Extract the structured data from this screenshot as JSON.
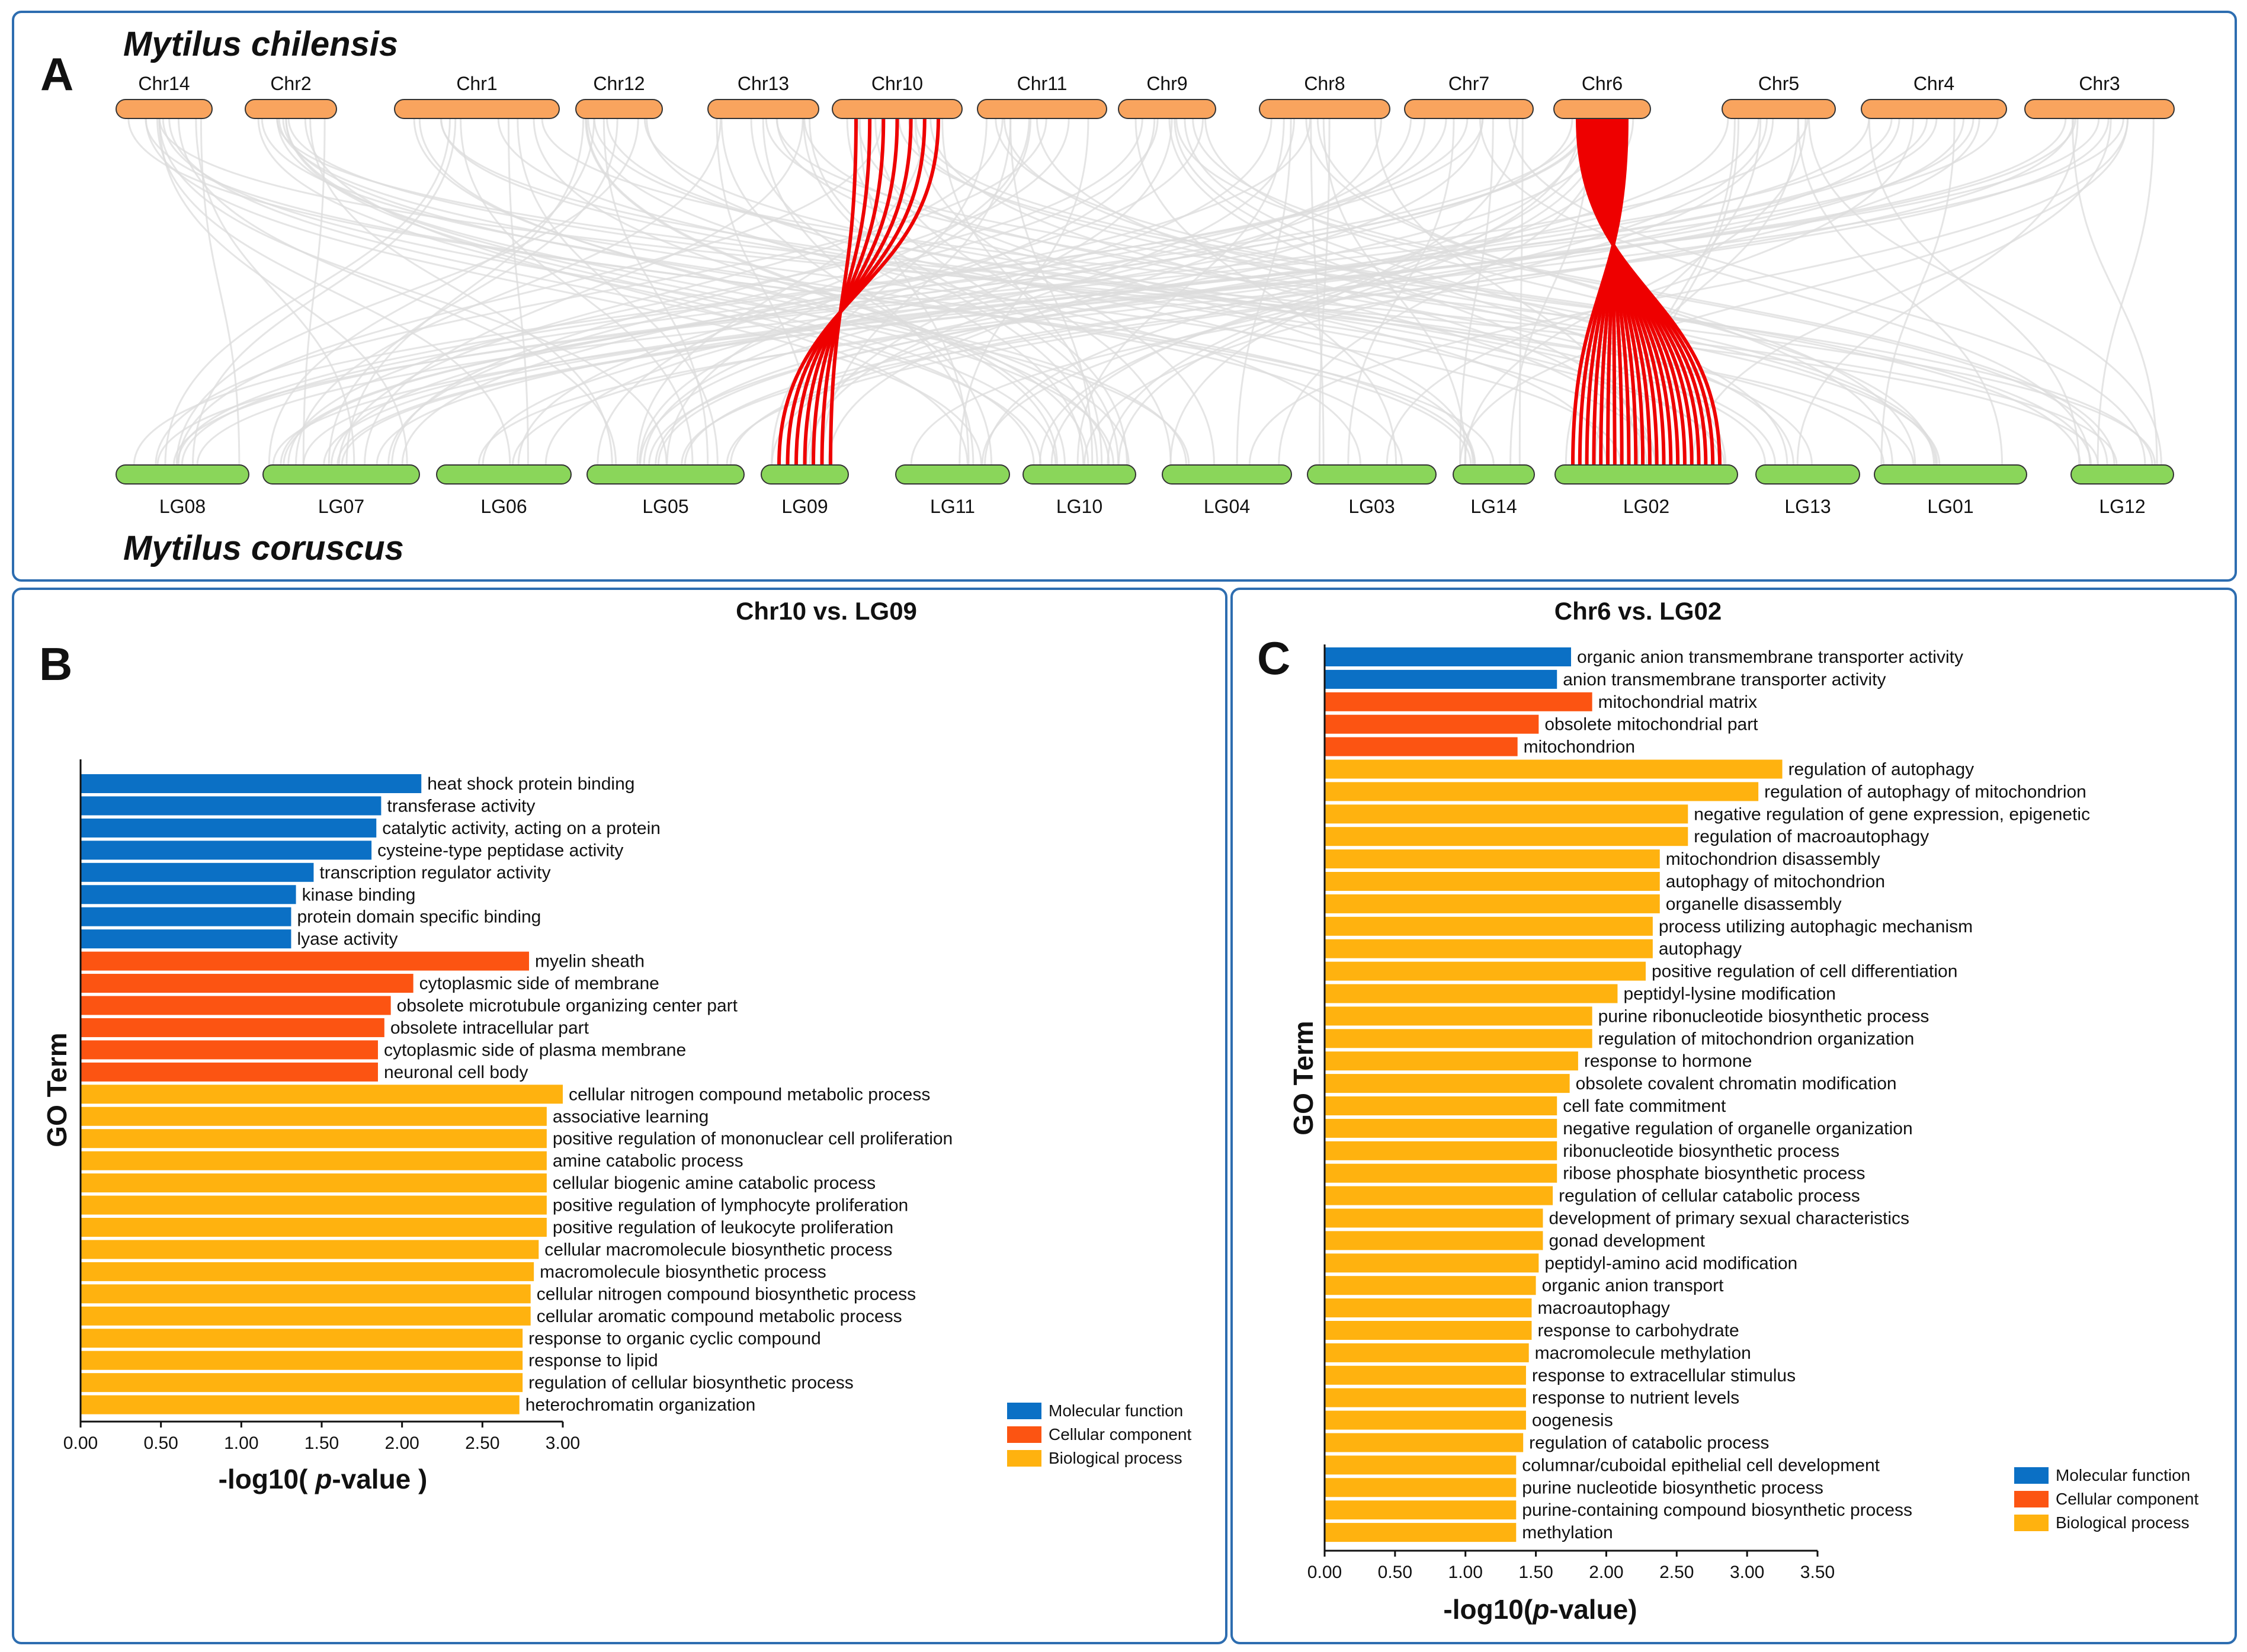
{
  "colors": {
    "molecular_function": "#0b70c5",
    "cellular_component": "#fc5412",
    "biological_process": "#ffb20f",
    "top_chromosome": "#f9a45e",
    "bottom_chromosome": "#8ad65a",
    "synteny_link": "#dcdcdc",
    "highlight_link": "#ee0000",
    "panel_border": "#2d6db0"
  },
  "panel_a": {
    "label": "A",
    "top_species": "Mytilus chilensis",
    "bottom_species": "Mytilus coruscus",
    "top_chromosomes": [
      "Chr14",
      "Chr2",
      "Chr1",
      "Chr12",
      "Chr13",
      "Chr10",
      "Chr11",
      "Chr9",
      "Chr8",
      "Chr7",
      "Chr6",
      "Chr5",
      "Chr4",
      "Chr3"
    ],
    "bottom_chromosomes": [
      "LG08",
      "LG07",
      "LG06",
      "LG05",
      "LG09",
      "LG11",
      "LG10",
      "LG04",
      "LG03",
      "LG14",
      "LG02",
      "LG13",
      "LG01",
      "LG12"
    ],
    "highlighted_pairs": [
      [
        "Chr10",
        "LG09"
      ],
      [
        "Chr6",
        "LG02"
      ]
    ]
  },
  "chart_data": [
    {
      "type": "bar",
      "orientation": "horizontal",
      "panel_label": "B",
      "title": "Chr10 vs. LG09",
      "xlabel": "-log10( p-value )",
      "ylabel": "GO Term",
      "xlim": [
        0,
        3.0
      ],
      "xticks": [
        "0.00",
        "0.50",
        "1.00",
        "1.50",
        "2.00",
        "2.50",
        "3.00"
      ],
      "legend": [
        "Molecular function",
        "Cellular component",
        "Biological process"
      ],
      "legend_position": "bottom-right",
      "categories": [
        {
          "term": "heat shock protein binding",
          "value": 2.12,
          "group": "Molecular function"
        },
        {
          "term": "transferase activity",
          "value": 1.87,
          "group": "Molecular function"
        },
        {
          "term": "catalytic activity, acting on a protein",
          "value": 1.84,
          "group": "Molecular function"
        },
        {
          "term": "cysteine-type peptidase activity",
          "value": 1.81,
          "group": "Molecular function"
        },
        {
          "term": "transcription regulator activity",
          "value": 1.45,
          "group": "Molecular function"
        },
        {
          "term": "kinase binding",
          "value": 1.34,
          "group": "Molecular function"
        },
        {
          "term": "protein domain specific binding",
          "value": 1.31,
          "group": "Molecular function"
        },
        {
          "term": "lyase activity",
          "value": 1.31,
          "group": "Molecular function"
        },
        {
          "term": "myelin sheath",
          "value": 2.79,
          "group": "Cellular component"
        },
        {
          "term": "cytoplasmic side of membrane",
          "value": 2.07,
          "group": "Cellular component"
        },
        {
          "term": "obsolete microtubule organizing center part",
          "value": 1.93,
          "group": "Cellular component"
        },
        {
          "term": "obsolete intracellular part",
          "value": 1.89,
          "group": "Cellular component"
        },
        {
          "term": "cytoplasmic side of plasma membrane",
          "value": 1.85,
          "group": "Cellular component"
        },
        {
          "term": "neuronal cell body",
          "value": 1.85,
          "group": "Cellular component"
        },
        {
          "term": "cellular nitrogen compound metabolic process",
          "value": 3.0,
          "group": "Biological process"
        },
        {
          "term": "associative learning",
          "value": 2.9,
          "group": "Biological process"
        },
        {
          "term": "positive regulation of mononuclear cell proliferation",
          "value": 2.9,
          "group": "Biological process"
        },
        {
          "term": "amine catabolic process",
          "value": 2.9,
          "group": "Biological process"
        },
        {
          "term": "cellular biogenic amine catabolic process",
          "value": 2.9,
          "group": "Biological process"
        },
        {
          "term": "positive regulation of lymphocyte proliferation",
          "value": 2.9,
          "group": "Biological process"
        },
        {
          "term": "positive regulation of leukocyte proliferation",
          "value": 2.9,
          "group": "Biological process"
        },
        {
          "term": "cellular macromolecule biosynthetic process",
          "value": 2.85,
          "group": "Biological process"
        },
        {
          "term": "macromolecule biosynthetic process",
          "value": 2.82,
          "group": "Biological process"
        },
        {
          "term": "cellular nitrogen compound biosynthetic process",
          "value": 2.8,
          "group": "Biological process"
        },
        {
          "term": "cellular aromatic compound metabolic process",
          "value": 2.8,
          "group": "Biological process"
        },
        {
          "term": "response to organic cyclic compound",
          "value": 2.75,
          "group": "Biological process"
        },
        {
          "term": "response to lipid",
          "value": 2.75,
          "group": "Biological process"
        },
        {
          "term": "regulation of cellular biosynthetic process",
          "value": 2.75,
          "group": "Biological process"
        },
        {
          "term": "heterochromatin organization",
          "value": 2.73,
          "group": "Biological process"
        }
      ]
    },
    {
      "type": "bar",
      "orientation": "horizontal",
      "panel_label": "C",
      "title": "Chr6 vs. LG02",
      "xlabel": "-log10(p-value)",
      "ylabel": "GO Term",
      "xlim": [
        0,
        3.5
      ],
      "xticks": [
        "0.00",
        "0.50",
        "1.00",
        "1.50",
        "2.00",
        "2.50",
        "3.00",
        "3.50"
      ],
      "legend": [
        "Molecular function",
        "Cellular component",
        "Biological process"
      ],
      "legend_position": "bottom-right",
      "categories": [
        {
          "term": "organic anion transmembrane transporter activity",
          "value": 1.75,
          "group": "Molecular function"
        },
        {
          "term": "anion transmembrane transporter activity",
          "value": 1.65,
          "group": "Molecular function"
        },
        {
          "term": "mitochondrial matrix",
          "value": 1.9,
          "group": "Cellular component"
        },
        {
          "term": "obsolete mitochondrial part",
          "value": 1.52,
          "group": "Cellular component"
        },
        {
          "term": "mitochondrion",
          "value": 1.37,
          "group": "Cellular component"
        },
        {
          "term": "regulation of autophagy",
          "value": 3.25,
          "group": "Biological process"
        },
        {
          "term": "regulation of autophagy of mitochondrion",
          "value": 3.08,
          "group": "Biological process"
        },
        {
          "term": "negative regulation of gene expression, epigenetic",
          "value": 2.58,
          "group": "Biological process"
        },
        {
          "term": "regulation of macroautophagy",
          "value": 2.58,
          "group": "Biological process"
        },
        {
          "term": "mitochondrion disassembly",
          "value": 2.38,
          "group": "Biological process"
        },
        {
          "term": "autophagy of mitochondrion",
          "value": 2.38,
          "group": "Biological process"
        },
        {
          "term": "organelle disassembly",
          "value": 2.38,
          "group": "Biological process"
        },
        {
          "term": "process utilizing autophagic mechanism",
          "value": 2.33,
          "group": "Biological process"
        },
        {
          "term": "autophagy",
          "value": 2.33,
          "group": "Biological process"
        },
        {
          "term": "positive regulation of cell differentiation",
          "value": 2.28,
          "group": "Biological process"
        },
        {
          "term": "peptidyl-lysine modification",
          "value": 2.08,
          "group": "Biological process"
        },
        {
          "term": "purine ribonucleotide biosynthetic process",
          "value": 1.9,
          "group": "Biological process"
        },
        {
          "term": "regulation of mitochondrion organization",
          "value": 1.9,
          "group": "Biological process"
        },
        {
          "term": "response to hormone",
          "value": 1.8,
          "group": "Biological process"
        },
        {
          "term": "obsolete covalent chromatin modification",
          "value": 1.74,
          "group": "Biological process"
        },
        {
          "term": "cell fate commitment",
          "value": 1.65,
          "group": "Biological process"
        },
        {
          "term": "negative regulation of organelle organization",
          "value": 1.65,
          "group": "Biological process"
        },
        {
          "term": "ribonucleotide biosynthetic process",
          "value": 1.65,
          "group": "Biological process"
        },
        {
          "term": "ribose phosphate biosynthetic process",
          "value": 1.65,
          "group": "Biological process"
        },
        {
          "term": "regulation of cellular catabolic process",
          "value": 1.62,
          "group": "Biological process"
        },
        {
          "term": "development of primary sexual characteristics",
          "value": 1.55,
          "group": "Biological process"
        },
        {
          "term": "gonad development",
          "value": 1.55,
          "group": "Biological process"
        },
        {
          "term": "peptidyl-amino acid modification",
          "value": 1.52,
          "group": "Biological process"
        },
        {
          "term": "organic anion transport",
          "value": 1.5,
          "group": "Biological process"
        },
        {
          "term": "macroautophagy",
          "value": 1.47,
          "group": "Biological process"
        },
        {
          "term": "response to carbohydrate",
          "value": 1.47,
          "group": "Biological process"
        },
        {
          "term": "macromolecule methylation",
          "value": 1.45,
          "group": "Biological process"
        },
        {
          "term": "response to extracellular stimulus",
          "value": 1.43,
          "group": "Biological process"
        },
        {
          "term": "response to nutrient levels",
          "value": 1.43,
          "group": "Biological process"
        },
        {
          "term": "oogenesis",
          "value": 1.43,
          "group": "Biological process"
        },
        {
          "term": "regulation of catabolic process",
          "value": 1.41,
          "group": "Biological process"
        },
        {
          "term": "columnar/cuboidal epithelial cell development",
          "value": 1.36,
          "group": "Biological process"
        },
        {
          "term": "purine nucleotide biosynthetic process",
          "value": 1.36,
          "group": "Biological process"
        },
        {
          "term": "purine-containing compound biosynthetic process",
          "value": 1.36,
          "group": "Biological process"
        },
        {
          "term": "methylation",
          "value": 1.36,
          "group": "Biological process"
        }
      ]
    }
  ]
}
